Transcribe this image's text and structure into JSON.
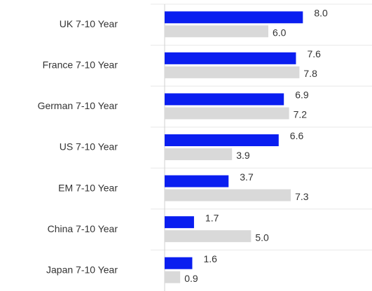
{
  "chart_data": {
    "type": "hbar",
    "categories": [
      "UK 7-10 Year",
      "France 7-10 Year",
      "German 7-10 Year",
      "US 7-10 Year",
      "EM 7-10 Year",
      "China 7-10 Year",
      "Japan 7-10 Year"
    ],
    "series": [
      {
        "color": "#0a1ef0",
        "values": [
          8.0,
          7.6,
          6.9,
          6.6,
          3.7,
          1.7,
          1.6
        ],
        "value_labels": [
          "8.0",
          "7.6",
          "6.9",
          "6.6",
          "3.7",
          "1.7",
          "1.6"
        ]
      },
      {
        "color": "#d9d9d9",
        "values": [
          6.0,
          7.8,
          7.2,
          3.9,
          7.3,
          5.0,
          0.9
        ],
        "value_labels": [
          "6.0",
          "7.8",
          "7.2",
          "3.9",
          "7.3",
          "5.0",
          "0.9"
        ]
      }
    ],
    "xlim": [
      0,
      12
    ]
  }
}
